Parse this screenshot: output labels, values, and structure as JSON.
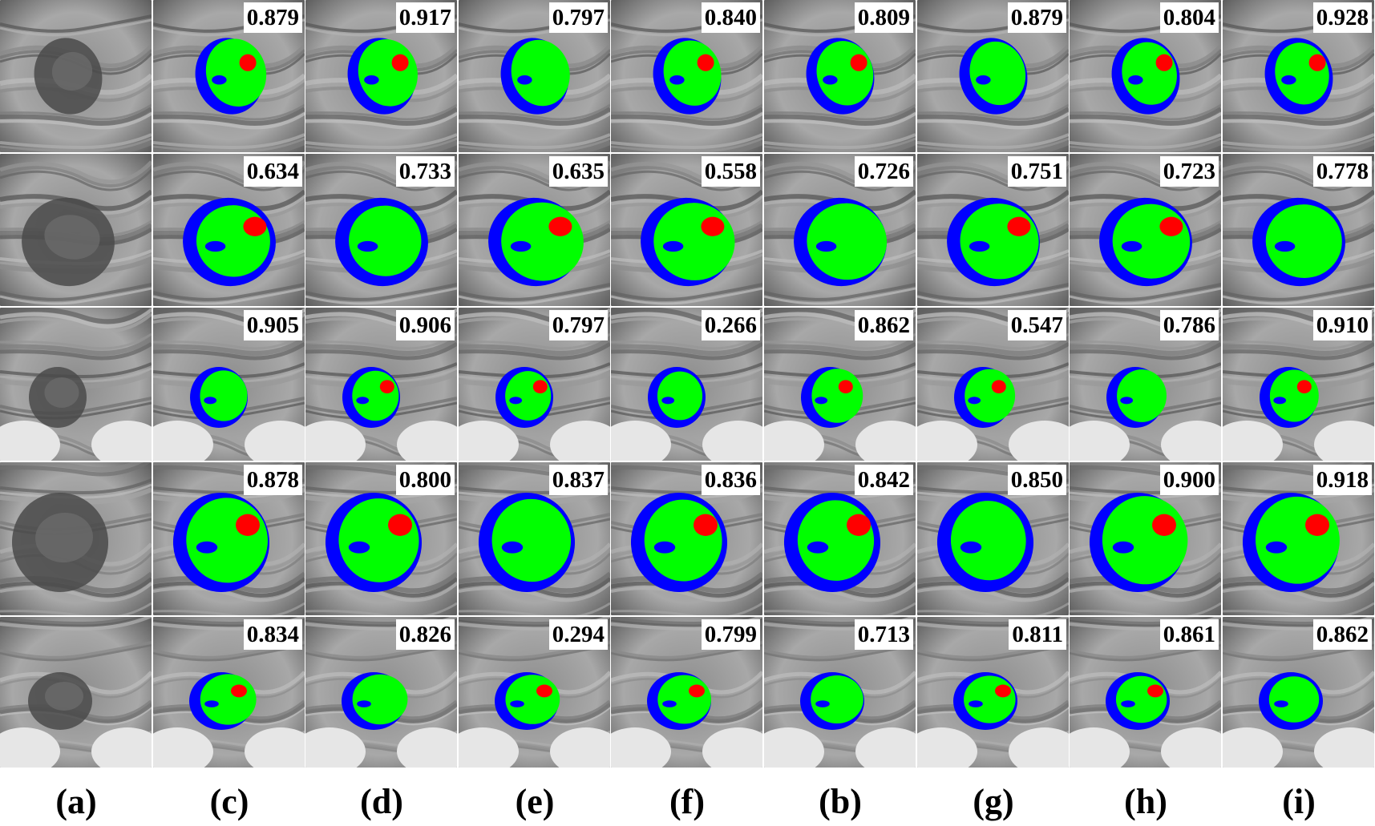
{
  "columns": [
    "(a)",
    "(c)",
    "(d)",
    "(e)",
    "(f)",
    "(b)",
    "(g)",
    "(h)",
    "(i)"
  ],
  "rows": [
    {
      "scores": [
        "0.879",
        "0.917",
        "0.797",
        "0.840",
        "0.809",
        "0.879",
        "0.804",
        "0.928"
      ]
    },
    {
      "scores": [
        "0.634",
        "0.733",
        "0.635",
        "0.558",
        "0.726",
        "0.751",
        "0.723",
        "0.778"
      ]
    },
    {
      "scores": [
        "0.905",
        "0.906",
        "0.797",
        "0.266",
        "0.862",
        "0.547",
        "0.786",
        "0.910"
      ]
    },
    {
      "scores": [
        "0.878",
        "0.800",
        "0.837",
        "0.836",
        "0.842",
        "0.850",
        "0.900",
        "0.918"
      ]
    },
    {
      "scores": [
        "0.834",
        "0.826",
        "0.294",
        "0.799",
        "0.713",
        "0.811",
        "0.861",
        "0.862"
      ]
    }
  ],
  "colors": {
    "true_positive": "#00ff00",
    "false_negative": "#0000ff",
    "false_positive": "#ff0000"
  }
}
